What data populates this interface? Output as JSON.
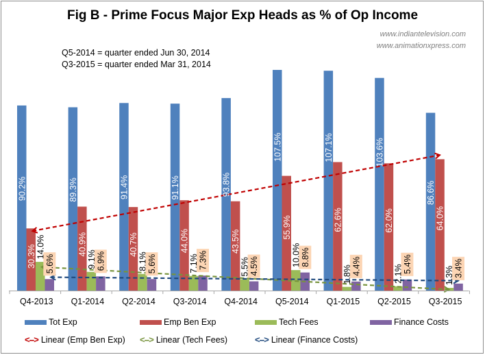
{
  "chart_data": {
    "type": "bar",
    "title": "Fig B - Prime Focus Major Exp Heads as % of Op Income",
    "sources": [
      "www.indiantelevision.com",
      "www.animationxpress.com"
    ],
    "notes": [
      "Q5-2014 = quarter ended Jun 30, 2014",
      "Q3-2015 = quarter ended Mar 31, 2014"
    ],
    "xlabel": "",
    "ylabel": "",
    "ylim": [
      0,
      110
    ],
    "grid": false,
    "legend_position": "bottom",
    "categories": [
      "Q4-2013",
      "Q1-2014",
      "Q2-2014",
      "Q3-2014",
      "Q4-2014",
      "Q5-2014",
      "Q1-2015",
      "Q2-2015",
      "Q3-2015"
    ],
    "series": [
      {
        "name": "Tot Exp",
        "color": "#4f81bd",
        "values": [
          90.2,
          89.3,
          91.4,
          91.1,
          93.8,
          107.5,
          107.1,
          103.6,
          86.6
        ],
        "labels": [
          "90.2%",
          "89.3%",
          "91.4%",
          "91.1%",
          "93.8%",
          "107.5%",
          "107.1%",
          "103.6%",
          "86.6%"
        ]
      },
      {
        "name": "Emp Ben Exp",
        "color": "#c0504d",
        "values": [
          30.3,
          40.9,
          40.7,
          44.0,
          43.5,
          55.9,
          62.6,
          62.0,
          64.0
        ],
        "labels": [
          "30.3%",
          "40.9%",
          "40.7%",
          "44.0%",
          "43.5%",
          "55.9%",
          "62.6%",
          "62.0%",
          "64.0%"
        ]
      },
      {
        "name": "Tech Fees",
        "color": "#9bbb59",
        "values": [
          14.0,
          9.1,
          8.1,
          7.1,
          5.5,
          10.0,
          1.8,
          2.1,
          1.3
        ],
        "labels": [
          "14.0%",
          "9.1%",
          "8.1%",
          "7.1%",
          "5.5%",
          "10.0%",
          "1.8%",
          "2.1%",
          "1.3%"
        ]
      },
      {
        "name": "Finance Costs",
        "color": "#8064a2",
        "values": [
          5.6,
          6.9,
          5.6,
          7.3,
          4.5,
          8.8,
          4.4,
          5.4,
          3.4
        ],
        "labels": [
          "5.6%",
          "6.9%",
          "5.6%",
          "7.3%",
          "4.5%",
          "8.8%",
          "4.4%",
          "5.4%",
          "3.4%"
        ]
      }
    ],
    "trendlines": [
      {
        "name": "Linear (Emp Ben Exp)",
        "series": "Emp Ben Exp",
        "color": "#c00000",
        "start": 29.0,
        "end": 66.0
      },
      {
        "name": "Linear (Tech Fees)",
        "series": "Tech Fees",
        "color": "#77933c",
        "start": 11.5,
        "end": 0.5
      },
      {
        "name": "Linear (Finance Costs)",
        "series": "Finance Costs",
        "color": "#1f497d",
        "start": 6.5,
        "end": 4.8
      }
    ],
    "label_highlight_color": "#fcd5b4"
  },
  "legend": {
    "bars": [
      "Tot Exp",
      "Emp Ben Exp",
      "Tech Fees",
      "Finance Costs"
    ],
    "trends": [
      "Linear (Emp Ben Exp)",
      "Linear (Tech Fees)",
      "Linear (Finance Costs)"
    ],
    "trend_glyph": "<-->"
  }
}
